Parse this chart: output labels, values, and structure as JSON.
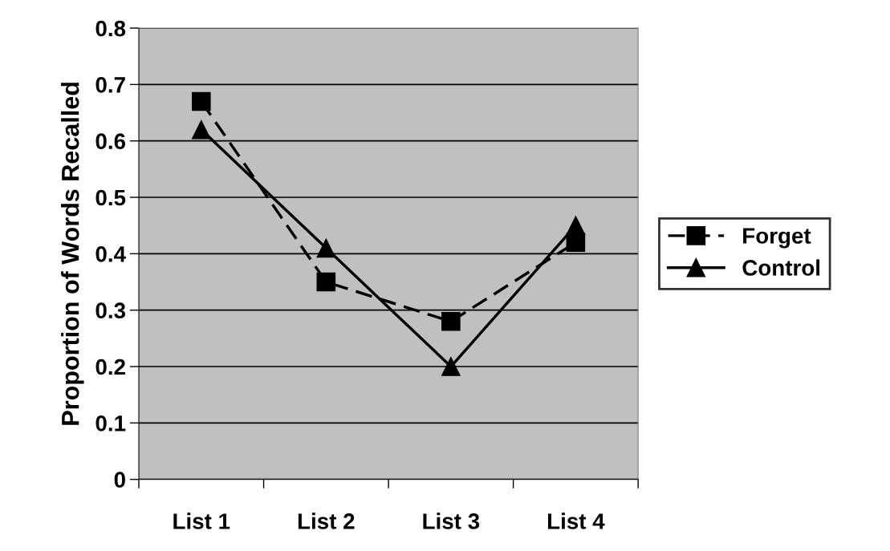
{
  "chart_data": {
    "type": "line",
    "ylabel": "Proportion of Words Recalled",
    "categories": [
      "List 1",
      "List 2",
      "List 3",
      "List 4"
    ],
    "series": [
      {
        "name": "Forget",
        "color": "#000000",
        "values": [
          0.67,
          0.35,
          0.28,
          0.42
        ],
        "marker": "square",
        "line_style": "dashed"
      },
      {
        "name": "Control",
        "color": "#000000",
        "values": [
          0.62,
          0.41,
          0.2,
          0.45
        ],
        "marker": "triangle",
        "line_style": "solid"
      }
    ],
    "ylim": [
      0,
      0.8
    ],
    "yticks": [
      0,
      0.1,
      0.2,
      0.3,
      0.4,
      0.5,
      0.6,
      0.7,
      0.8
    ],
    "grid": "y",
    "legend": "right"
  }
}
